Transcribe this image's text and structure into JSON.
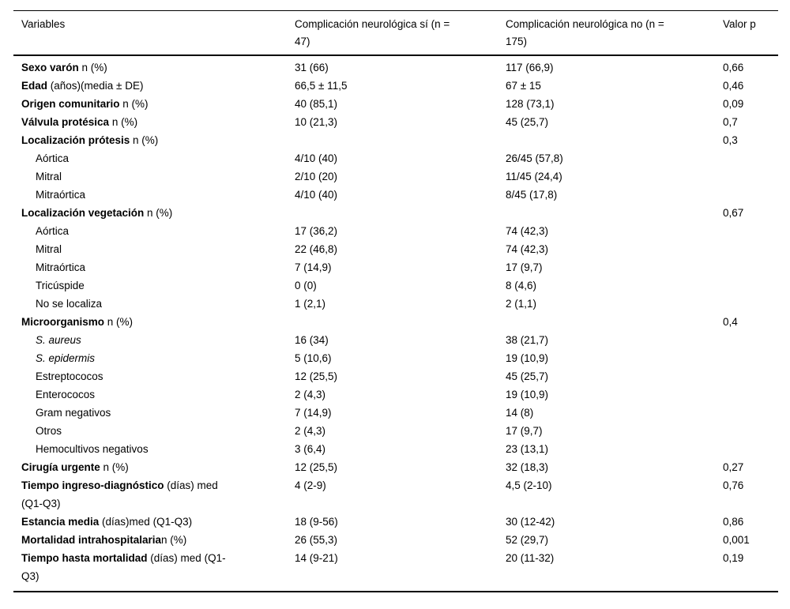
{
  "table": {
    "headers": {
      "variables": "Variables",
      "group_yes": "Complicación neurológica sí (n =\n47)",
      "group_no": "Complicación neurológica no (n =\n175)",
      "p": "Valor p"
    },
    "rows": [
      {
        "segments": [
          {
            "t": "Sexo varón",
            "b": true
          },
          {
            "t": " n (%)"
          }
        ],
        "indent": false,
        "yes": "31 (66)",
        "no": "117 (66,9)",
        "p": "0,66"
      },
      {
        "segments": [
          {
            "t": "Edad",
            "b": true
          },
          {
            "t": " (años)(media ± DE)"
          }
        ],
        "indent": false,
        "yes": "66,5 ± 11,5",
        "no": "67 ± 15",
        "p": "0,46"
      },
      {
        "segments": [
          {
            "t": "Origen comunitario",
            "b": true
          },
          {
            "t": " n (%)"
          }
        ],
        "indent": false,
        "yes": "40 (85,1)",
        "no": "128 (73,1)",
        "p": "0,09"
      },
      {
        "segments": [
          {
            "t": "Válvula protésica",
            "b": true
          },
          {
            "t": " n (%)"
          }
        ],
        "indent": false,
        "yes": "10 (21,3)",
        "no": "45 (25,7)",
        "p": "0,7"
      },
      {
        "segments": [
          {
            "t": "Localización prótesis",
            "b": true
          },
          {
            "t": " n (%)"
          }
        ],
        "indent": false,
        "yes": "",
        "no": "",
        "p": "0,3"
      },
      {
        "segments": [
          {
            "t": "Aórtica"
          }
        ],
        "indent": true,
        "yes": "4/10 (40)",
        "no": "26/45 (57,8)",
        "p": ""
      },
      {
        "segments": [
          {
            "t": "Mitral"
          }
        ],
        "indent": true,
        "yes": "2/10 (20)",
        "no": "11/45 (24,4)",
        "p": ""
      },
      {
        "segments": [
          {
            "t": "Mitraórtica"
          }
        ],
        "indent": true,
        "yes": "4/10 (40)",
        "no": "8/45 (17,8)",
        "p": ""
      },
      {
        "segments": [
          {
            "t": "Localización vegetación",
            "b": true
          },
          {
            "t": " n (%)"
          }
        ],
        "indent": false,
        "yes": "",
        "no": "",
        "p": "0,67"
      },
      {
        "segments": [
          {
            "t": "Aórtica"
          }
        ],
        "indent": true,
        "yes": "17 (36,2)",
        "no": "74 (42,3)",
        "p": ""
      },
      {
        "segments": [
          {
            "t": "Mitral"
          }
        ],
        "indent": true,
        "yes": "22 (46,8)",
        "no": "74 (42,3)",
        "p": ""
      },
      {
        "segments": [
          {
            "t": "Mitraórtica"
          }
        ],
        "indent": true,
        "yes": "7 (14,9)",
        "no": "17 (9,7)",
        "p": ""
      },
      {
        "segments": [
          {
            "t": "Tricúspide"
          }
        ],
        "indent": true,
        "yes": "0 (0)",
        "no": "8 (4,6)",
        "p": ""
      },
      {
        "segments": [
          {
            "t": "No se localiza"
          }
        ],
        "indent": true,
        "yes": "1 (2,1)",
        "no": "2 (1,1)",
        "p": ""
      },
      {
        "segments": [
          {
            "t": "Microorganismo",
            "b": true
          },
          {
            "t": " n (%)"
          }
        ],
        "indent": false,
        "yes": "",
        "no": "",
        "p": "0,4"
      },
      {
        "segments": [
          {
            "t": "S. aureus",
            "i": true
          }
        ],
        "indent": true,
        "yes": "16 (34)",
        "no": "38 (21,7)",
        "p": ""
      },
      {
        "segments": [
          {
            "t": "S. epidermis",
            "i": true
          }
        ],
        "indent": true,
        "yes": "5 (10,6)",
        "no": "19 (10,9)",
        "p": ""
      },
      {
        "segments": [
          {
            "t": "Estreptococos"
          }
        ],
        "indent": true,
        "yes": "12 (25,5)",
        "no": "45 (25,7)",
        "p": ""
      },
      {
        "segments": [
          {
            "t": "Enterococos"
          }
        ],
        "indent": true,
        "yes": "2 (4,3)",
        "no": "19 (10,9)",
        "p": ""
      },
      {
        "segments": [
          {
            "t": "Gram negativos"
          }
        ],
        "indent": true,
        "yes": "7 (14,9)",
        "no": "14 (8)",
        "p": ""
      },
      {
        "segments": [
          {
            "t": "Otros"
          }
        ],
        "indent": true,
        "yes": "2 (4,3)",
        "no": "17 (9,7)",
        "p": ""
      },
      {
        "segments": [
          {
            "t": "Hemocultivos negativos"
          }
        ],
        "indent": true,
        "yes": "3 (6,4)",
        "no": "23 (13,1)",
        "p": ""
      },
      {
        "segments": [
          {
            "t": "Cirugía urgente",
            "b": true
          },
          {
            "t": " n (%)"
          }
        ],
        "indent": false,
        "yes": "12 (25,5)",
        "no": "32 (18,3)",
        "p": "0,27"
      },
      {
        "segments": [
          {
            "t": "Tiempo ingreso-diagnóstico",
            "b": true
          },
          {
            "t": " (días) med\n(Q1-Q3)"
          }
        ],
        "indent": false,
        "yes": "4 (2-9)",
        "no": "4,5 (2-10)",
        "p": "0,76"
      },
      {
        "segments": [
          {
            "t": "Estancia media",
            "b": true
          },
          {
            "t": " (días)med (Q1-Q3)"
          }
        ],
        "indent": false,
        "yes": "18 (9-56)",
        "no": "30 (12-42)",
        "p": "0,86"
      },
      {
        "segments": [
          {
            "t": "Mortalidad intrahospitalaria",
            "b": true
          },
          {
            "t": "n (%)"
          }
        ],
        "indent": false,
        "yes": "26 (55,3)",
        "no": "52 (29,7)",
        "p": "0,001"
      },
      {
        "segments": [
          {
            "t": "Tiempo hasta mortalidad",
            "b": true
          },
          {
            "t": " (días) med (Q1-\nQ3)"
          }
        ],
        "indent": false,
        "yes": "14 (9-21)",
        "no": "20 (11-32)",
        "p": "0,19"
      }
    ]
  }
}
